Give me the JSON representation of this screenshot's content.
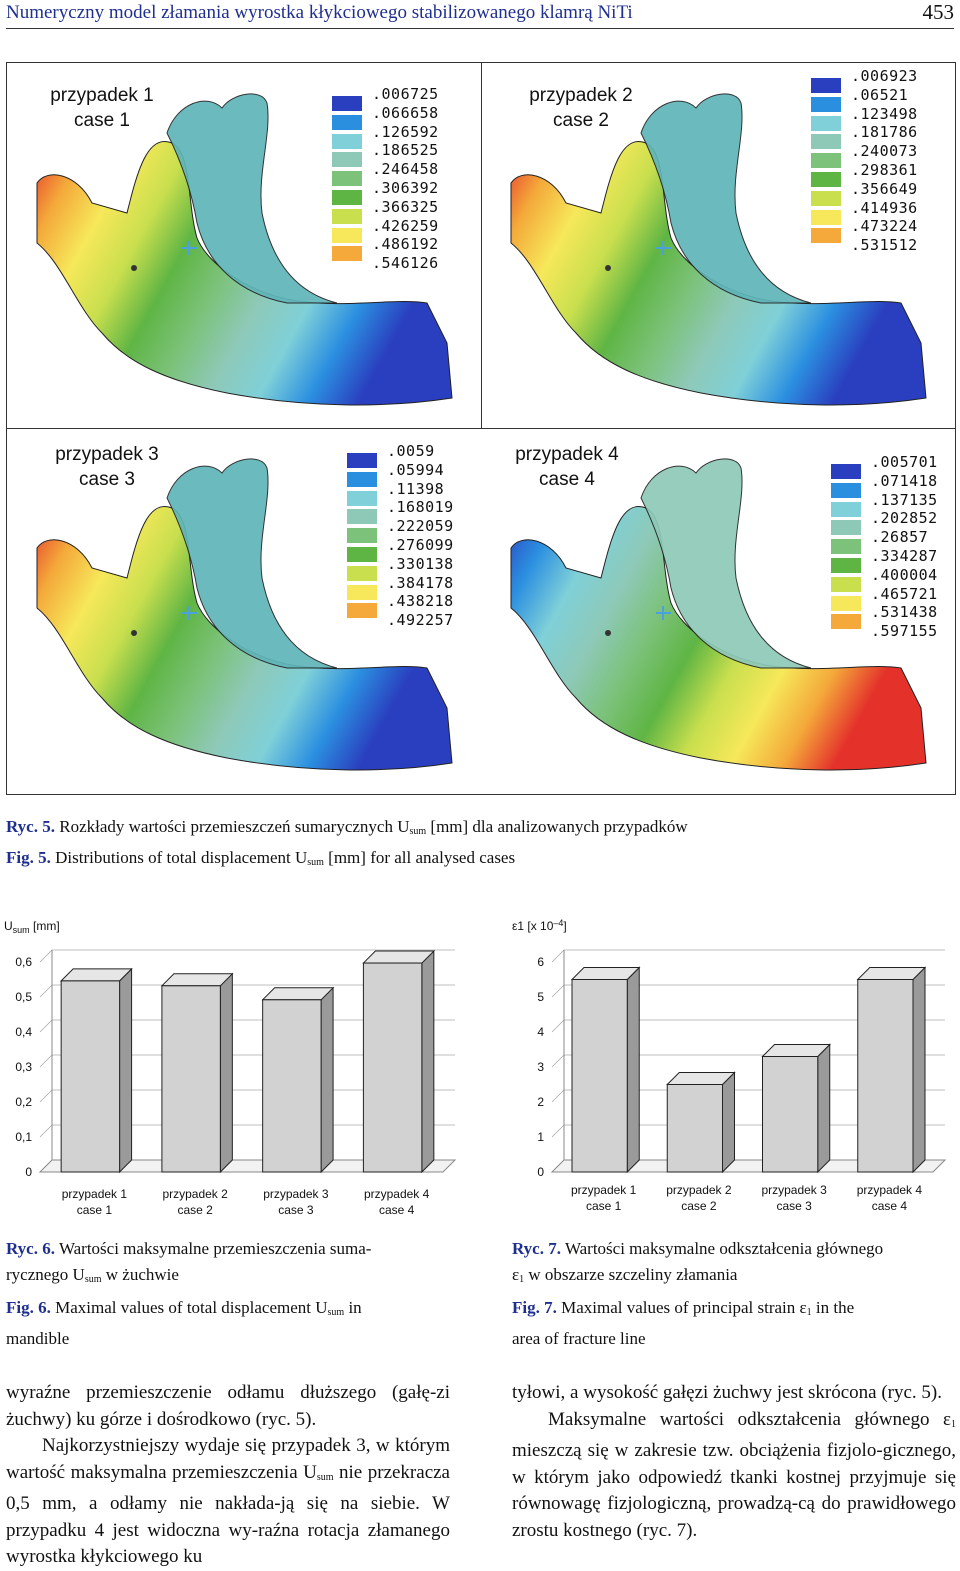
{
  "header": {
    "title": "Numeryczny model złamania wyrostka kłykciowego stabilizowanego klamrą NiTi",
    "page_number": "453"
  },
  "fig5": {
    "panels": [
      {
        "label_pl": "przypadek 1",
        "label_en": "case 1",
        "legend": [
          ".006725",
          ".066658",
          ".126592",
          ".186525",
          ".246458",
          ".306392",
          ".366325",
          ".426259",
          ".486192",
          ".546126"
        ]
      },
      {
        "label_pl": "przypadek 2",
        "label_en": "case 2",
        "legend": [
          ".006923",
          ".06521",
          ".123498",
          ".181786",
          ".240073",
          ".298361",
          ".356649",
          ".414936",
          ".473224",
          ".531512"
        ]
      },
      {
        "label_pl": "przypadek 3",
        "label_en": "case 3",
        "legend": [
          ".0059",
          ".05994",
          ".11398",
          ".168019",
          ".222059",
          ".276099",
          ".330138",
          ".384178",
          ".438218",
          ".492257"
        ]
      },
      {
        "label_pl": "przypadek 4",
        "label_en": "case 4",
        "legend": [
          ".005701",
          ".071418",
          ".137135",
          ".202852",
          ".26857",
          ".334287",
          ".400004",
          ".465721",
          ".531438",
          ".597155"
        ]
      }
    ],
    "legend_colors": [
      "#2a3fbf",
      "#2b8fe0",
      "#7fd0d8",
      "#8ec9b8",
      "#7cc27a",
      "#5fb544",
      "#c9df4e",
      "#f6e85a",
      "#f4a93a",
      "#e4322b"
    ],
    "caption_pl_label": "Ryc. 5.",
    "caption_pl_a": "Rozkłady wartości przemieszczeń sumarycznych U",
    "caption_pl_sub": "sum",
    "caption_pl_b": "[mm] dla analizowanych przypadków",
    "caption_en_label": "Fig. 5.",
    "caption_en_a": "Distributions of total displacement U",
    "caption_en_sub": "sum",
    "caption_en_b": "[mm] for all analysed cases"
  },
  "chart_data": [
    {
      "type": "bar",
      "ylabel_main": "U",
      "ylabel_sub": "sum",
      "ylabel_unit": "[mm]",
      "categories": [
        [
          "przypadek 1",
          "case 1"
        ],
        [
          "przypadek 2",
          "case 2"
        ],
        [
          "przypadek 3",
          "case 3"
        ],
        [
          "przypadek 4",
          "case 4"
        ]
      ],
      "values": [
        0.546,
        0.532,
        0.492,
        0.597
      ],
      "ylim": [
        0,
        0.6
      ],
      "yticks": [
        "0",
        "0,1",
        "0,2",
        "0,3",
        "0,4",
        "0,5",
        "0,6"
      ],
      "grid": true
    },
    {
      "type": "bar",
      "ylabel_main": "ε1 [x 10",
      "ylabel_sup": "–4",
      "ylabel_end": "]",
      "categories": [
        [
          "przypadek 1",
          "case 1"
        ],
        [
          "przypadek 2",
          "case 2"
        ],
        [
          "przypadek 3",
          "case 3"
        ],
        [
          "przypadek 4",
          "case 4"
        ]
      ],
      "values": [
        5.5,
        2.5,
        3.3,
        5.5
      ],
      "ylim": [
        0,
        6
      ],
      "yticks": [
        "0",
        "1",
        "2",
        "3",
        "4",
        "5",
        "6"
      ],
      "grid": true
    }
  ],
  "fig6": {
    "pl_label": "Ryc. 6.",
    "pl_a": "Wartości maksymalne przemieszczenia suma-",
    "pl_b": "rycznego U",
    "pl_sub": "sum",
    "pl_c": "w żuchwie",
    "en_label": "Fig. 6.",
    "en_a": "Maximal values of total displacement U",
    "en_sub": "sum",
    "en_b": "in",
    "en_c": "mandible"
  },
  "fig7": {
    "pl_label": "Ryc. 7.",
    "pl_a": "Wartości maksymalne odkształcenia głównego",
    "pl_b": "ε",
    "pl_sub": "1",
    "pl_c": "w obszarze szczeliny złamania",
    "en_label": "Fig. 7.",
    "en_a": "Maximal values of principal strain ε",
    "en_sub": "1",
    "en_b": "in the",
    "en_c": "area of fracture line"
  },
  "body": {
    "left_p1": "wyraźne przemieszczenie odłamu dłuższego (gałę-zi żuchwy) ku górze i dośrodkowo (ryc. 5).",
    "left_p2a": "Najkorzystniejszy wydaje się przypadek 3, w którym wartość maksymalna przemieszczenia U",
    "left_p2sub": "sum",
    "left_p2b": "nie przekracza 0,5 mm, a odłamy nie nakłada-ją się na siebie. W przypadku 4 jest widoczna wy-raźna rotacja złamanego wyrostka kłykciowego ku",
    "right_p1": "tyłowi, a wysokość gałęzi żuchwy jest skrócona (ryc. 5).",
    "right_p2a": "Maksymalne wartości odkształcenia głównego ε",
    "right_p2sub": "1",
    "right_p2b": "mieszczą się w zakresie tzw. obciążenia fizjolo-gicznego, w którym jako odpowiedź tkanki kostnej przyjmuje się równowagę fizjologiczną, prowadzą-cą do prawidłowego zrostu kostnego (ryc. 7)."
  }
}
